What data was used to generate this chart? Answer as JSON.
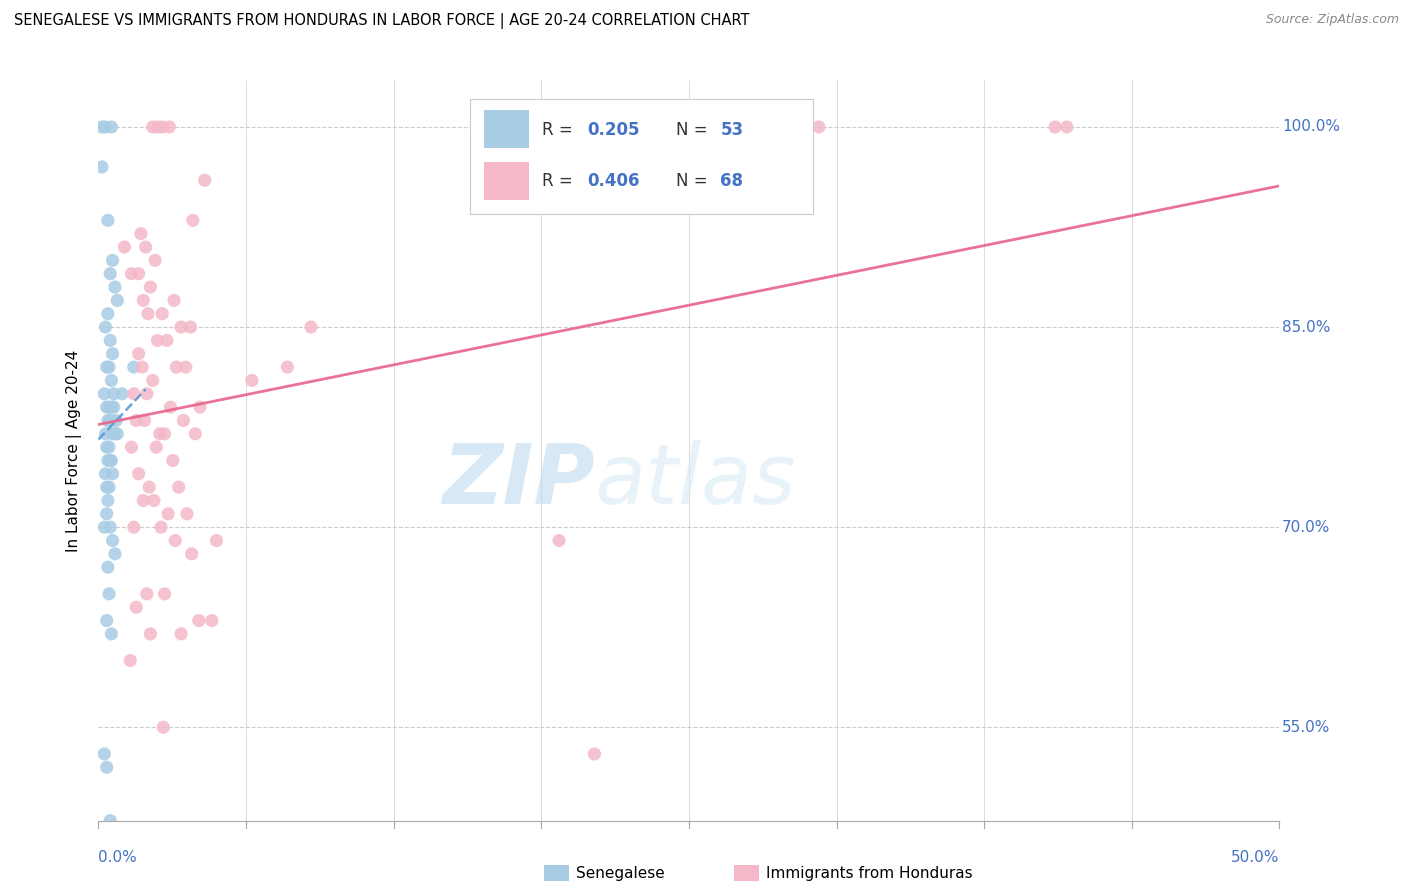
{
  "title": "SENEGALESE VS IMMIGRANTS FROM HONDURAS IN LABOR FORCE | AGE 20-24 CORRELATION CHART",
  "source": "Source: ZipAtlas.com",
  "ylabel": "In Labor Force | Age 20-24",
  "watermark_zip": "ZIP",
  "watermark_atlas": "atlas",
  "blue_color": "#a8cce4",
  "pink_color": "#f4b8c8",
  "blue_line_color": "#5b9bd5",
  "pink_line_color": "#e8638a",
  "blue_label": "Senegalese",
  "pink_label": "Immigrants from Honduras",
  "blue_R": "0.205",
  "blue_N": "53",
  "pink_R": "0.406",
  "pink_N": "68",
  "x_min": 0.0,
  "x_max": 50.0,
  "y_min": 48.0,
  "y_max": 103.5,
  "y_ticks": [
    55,
    70,
    85,
    100
  ],
  "right_color": "#4472c4",
  "blue_scatter_x": [
    0.15,
    0.55,
    0.3,
    0.4,
    0.6,
    0.5,
    0.7,
    0.8,
    0.4,
    0.3,
    0.5,
    0.6,
    0.35,
    0.45,
    0.55,
    0.65,
    0.25,
    0.35,
    0.45,
    0.55,
    0.65,
    0.75,
    0.4,
    0.5,
    0.3,
    0.6,
    0.7,
    0.8,
    0.35,
    0.45,
    0.55,
    0.4,
    0.5,
    0.3,
    0.6,
    0.35,
    0.45,
    1.0,
    1.5,
    0.4,
    0.35,
    0.25,
    0.5,
    0.6,
    0.7,
    0.4,
    0.45,
    0.35,
    0.55,
    0.25,
    0.35,
    0.5,
    0.15
  ],
  "blue_scatter_y": [
    97,
    100,
    100,
    93,
    90,
    89,
    88,
    87,
    86,
    85,
    84,
    83,
    82,
    82,
    81,
    80,
    80,
    79,
    79,
    79,
    79,
    78,
    78,
    78,
    77,
    77,
    77,
    77,
    76,
    76,
    75,
    75,
    75,
    74,
    74,
    73,
    73,
    80,
    82,
    72,
    71,
    70,
    70,
    69,
    68,
    67,
    65,
    63,
    62,
    53,
    52,
    48,
    100
  ],
  "pink_scatter_x": [
    2.5,
    2.3,
    2.7,
    3.0,
    4.5,
    4.0,
    1.8,
    2.0,
    2.4,
    1.4,
    1.7,
    2.2,
    1.9,
    3.2,
    2.7,
    2.1,
    3.5,
    3.9,
    2.5,
    2.9,
    1.7,
    1.85,
    3.3,
    3.7,
    2.3,
    1.5,
    2.05,
    3.05,
    4.3,
    1.95,
    1.6,
    3.6,
    2.6,
    4.1,
    2.8,
    1.4,
    2.45,
    3.15,
    5.0,
    19.5,
    1.7,
    2.15,
    3.4,
    1.9,
    2.35,
    2.95,
    3.75,
    1.5,
    2.65,
    3.25,
    3.95,
    2.05,
    2.8,
    1.6,
    4.25,
    4.8,
    2.2,
    3.5,
    1.35,
    2.75,
    21.0,
    40.5,
    41.0,
    30.5,
    9.0,
    8.0,
    6.5,
    1.1
  ],
  "pink_scatter_y": [
    100,
    100,
    100,
    100,
    96,
    93,
    92,
    91,
    90,
    89,
    89,
    88,
    87,
    87,
    86,
    86,
    85,
    85,
    84,
    84,
    83,
    82,
    82,
    82,
    81,
    80,
    80,
    79,
    79,
    78,
    78,
    78,
    77,
    77,
    77,
    76,
    76,
    75,
    69,
    69,
    74,
    73,
    73,
    72,
    72,
    71,
    71,
    70,
    70,
    69,
    68,
    65,
    65,
    64,
    63,
    63,
    62,
    62,
    60,
    55,
    53,
    100,
    100,
    100,
    85,
    82,
    81,
    91
  ]
}
